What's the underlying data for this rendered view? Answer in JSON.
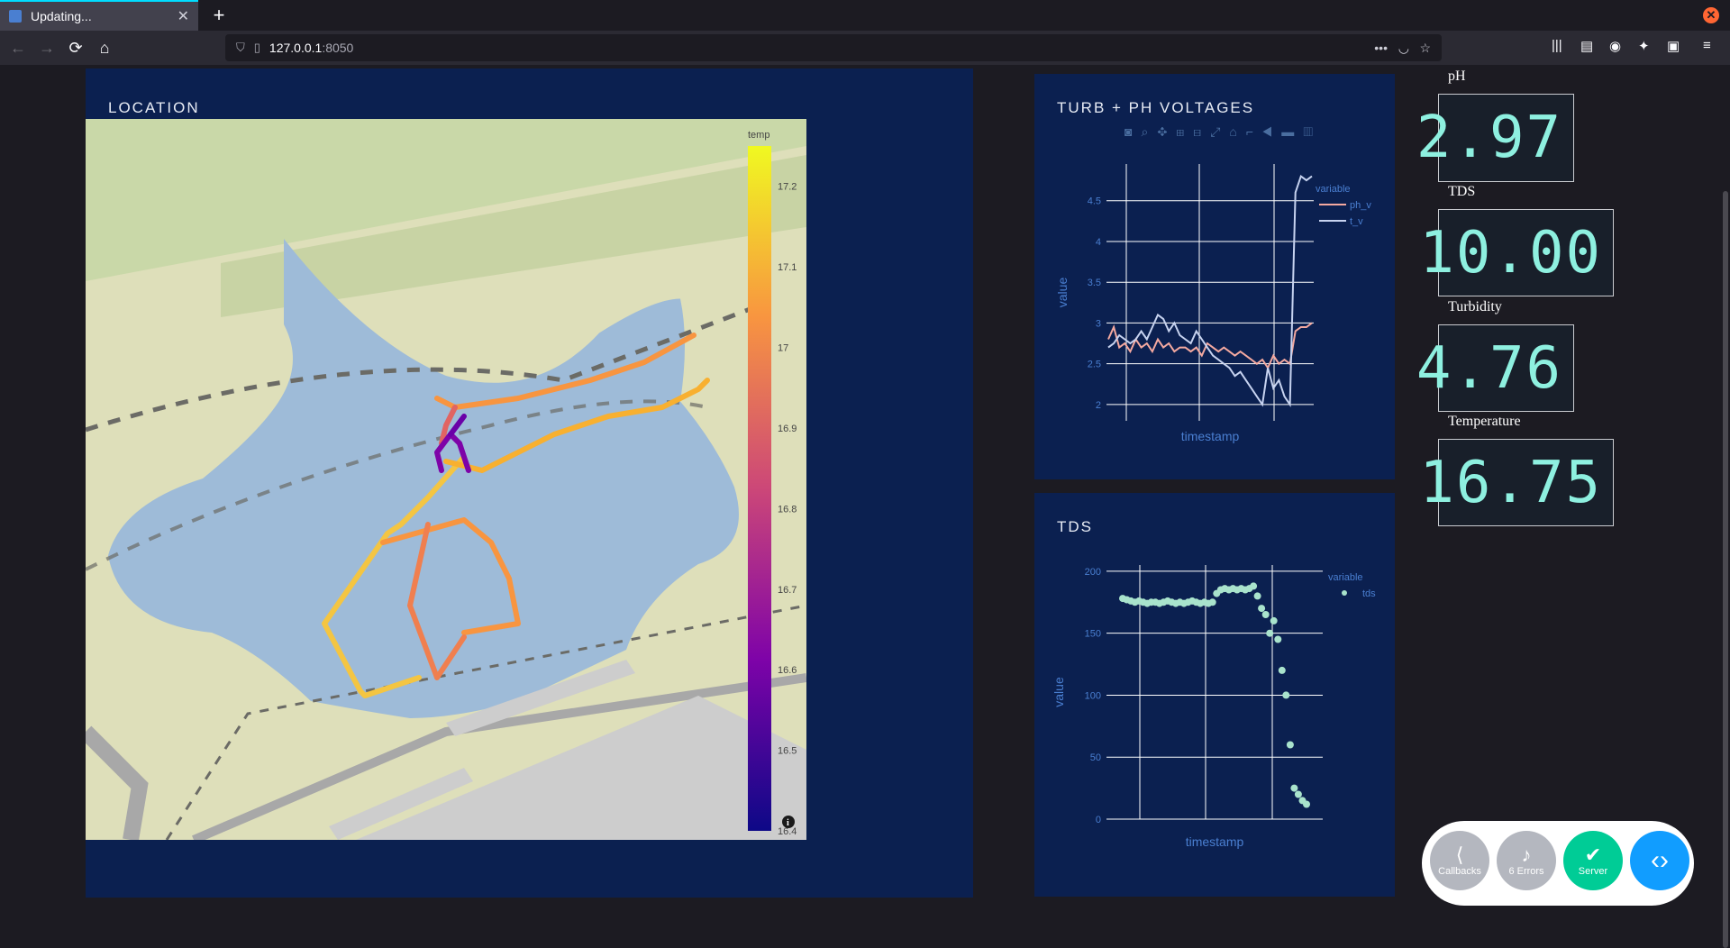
{
  "browser": {
    "tab_title": "Updating...",
    "url_host": "127.0.0.1",
    "url_port": ":8050"
  },
  "location": {
    "title": "LOCATION",
    "colorbar_title": "temp",
    "colorbar_ticks": [
      "17.2",
      "17.1",
      "17",
      "16.9",
      "16.8",
      "16.7",
      "16.6",
      "16.5",
      "16.4"
    ]
  },
  "turb_ph": {
    "title": "TURB + PH VOLTAGES",
    "xlabel": "timestamp",
    "ylabel": "value",
    "legend_title": "variable",
    "legend_items": [
      "ph_v",
      "t_v"
    ],
    "yticks": [
      "4.5",
      "4",
      "3.5",
      "3",
      "2.5",
      "2"
    ]
  },
  "tds_chart": {
    "title": "TDS",
    "xlabel": "timestamp",
    "ylabel": "value",
    "legend_title": "variable",
    "legend_items": [
      "tds"
    ],
    "yticks": [
      "200",
      "150",
      "100",
      "50",
      "0"
    ]
  },
  "readouts": [
    {
      "label": "pH",
      "value": "2.97"
    },
    {
      "label": "TDS",
      "value": "10.00"
    },
    {
      "label": "Turbidity",
      "value": "4.76"
    },
    {
      "label": "Temperature",
      "value": "16.75"
    }
  ],
  "devtools": {
    "callbacks": "Callbacks",
    "errors": "6 Errors",
    "server": "Server"
  },
  "colors": {
    "panel_bg": "#0b2050",
    "ph_line": "#f4a9a0",
    "t_line": "#c7d3f0",
    "tds_dot": "#a9e3cc",
    "digit": "#8ef0e0"
  },
  "chart_data": [
    {
      "type": "line",
      "title": "TURB + PH VOLTAGES",
      "xlabel": "timestamp",
      "ylabel": "value",
      "ylim": [
        1.8,
        4.95
      ],
      "series": [
        {
          "name": "ph_v",
          "values": [
            2.8,
            2.95,
            2.7,
            2.75,
            2.65,
            2.8,
            2.7,
            2.75,
            2.65,
            2.8,
            2.7,
            2.75,
            2.65,
            2.7,
            2.7,
            2.65,
            2.7,
            2.6,
            2.75,
            2.7,
            2.65,
            2.7,
            2.65,
            2.6,
            2.65,
            2.6,
            2.55,
            2.5,
            2.55,
            2.45,
            2.6,
            2.5,
            2.55,
            2.5,
            2.9,
            2.95,
            2.95,
            3.0
          ]
        },
        {
          "name": "t_v",
          "values": [
            2.7,
            2.75,
            2.85,
            2.8,
            2.75,
            2.8,
            2.9,
            2.8,
            2.95,
            3.1,
            3.05,
            2.9,
            3.0,
            2.85,
            2.8,
            2.75,
            2.9,
            2.8,
            2.7,
            2.6,
            2.55,
            2.5,
            2.45,
            2.35,
            2.4,
            2.3,
            2.2,
            2.1,
            2.0,
            2.45,
            2.2,
            2.3,
            2.1,
            2.0,
            4.6,
            4.8,
            4.75,
            4.8
          ]
        }
      ]
    },
    {
      "type": "scatter",
      "title": "TDS",
      "xlabel": "timestamp",
      "ylabel": "value",
      "ylim": [
        0,
        205
      ],
      "series": [
        {
          "name": "tds",
          "values": [
            178,
            177,
            176,
            175,
            176,
            175,
            174,
            175,
            175,
            174,
            175,
            176,
            175,
            174,
            175,
            174,
            175,
            176,
            175,
            174,
            175,
            174,
            175,
            182,
            185,
            186,
            185,
            186,
            185,
            186,
            185,
            186,
            188,
            180,
            170,
            165,
            150,
            160,
            145,
            120,
            100,
            60,
            25,
            20,
            15,
            12
          ]
        }
      ]
    }
  ]
}
